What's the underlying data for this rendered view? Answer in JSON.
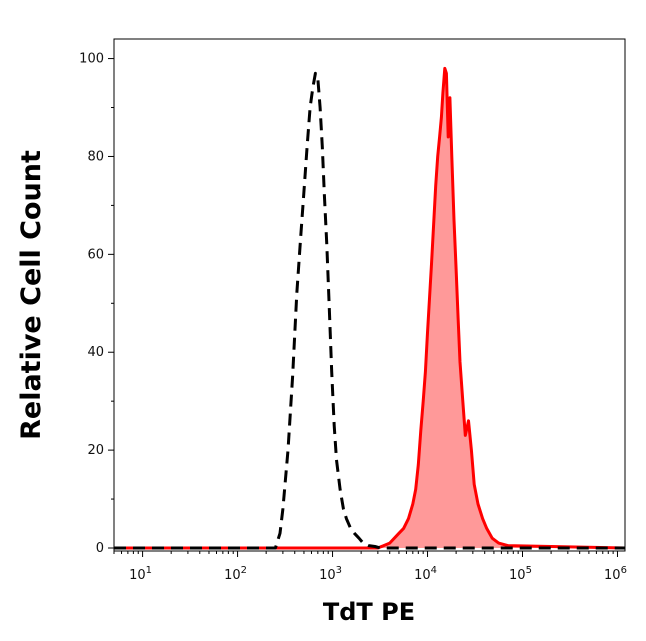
{
  "chart_data": {
    "type": "area",
    "title": "",
    "xlabel": "TdT PE",
    "ylabel": "Relative Cell Count",
    "x_scale": "log",
    "xlim": [
      5,
      1200000
    ],
    "ylim": [
      0,
      104
    ],
    "x_ticks": [
      {
        "value": 10,
        "base": "10",
        "exp": "1"
      },
      {
        "value": 100,
        "base": "10",
        "exp": "2"
      },
      {
        "value": 1000,
        "base": "10",
        "exp": "3"
      },
      {
        "value": 10000,
        "base": "10",
        "exp": "4"
      },
      {
        "value": 100000,
        "base": "10",
        "exp": "5"
      },
      {
        "value": 1000000,
        "base": "10",
        "exp": "6"
      }
    ],
    "y_ticks": [
      "0",
      "20",
      "40",
      "60",
      "80",
      "100"
    ],
    "grid": false,
    "legend": "none",
    "series": [
      {
        "style": "dashed-outline",
        "color": "#000000",
        "x": [
          5,
          250,
          280,
          300,
          340,
          380,
          420,
          460,
          500,
          540,
          580,
          620,
          660,
          700,
          740,
          780,
          820,
          870,
          920,
          980,
          1040,
          1100,
          1200,
          1300,
          1400,
          1550,
          1700,
          1900,
          2100,
          2400,
          2800,
          3200,
          1200000
        ],
        "y": [
          0,
          0,
          3,
          8,
          20,
          35,
          52,
          63,
          73,
          82,
          90,
          94,
          97,
          96,
          90,
          82,
          72,
          62,
          50,
          36,
          25,
          18,
          12,
          8,
          6,
          4,
          3,
          2,
          1,
          0.5,
          0.3,
          0,
          0
        ]
      },
      {
        "style": "filled",
        "color": "#ff0000",
        "fill": "#ff9999",
        "x": [
          5,
          3000,
          4000,
          5000,
          5600,
          6300,
          7000,
          7500,
          8000,
          8500,
          9000,
          9500,
          10000,
          10500,
          11000,
          11600,
          12200,
          12800,
          13400,
          14000,
          14500,
          15200,
          15800,
          16500,
          17200,
          18000,
          19000,
          20000,
          21000,
          22000,
          23500,
          25000,
          27000,
          29000,
          31000,
          34000,
          38000,
          42000,
          48000,
          56000,
          70000,
          1200000
        ],
        "y": [
          0,
          0,
          1,
          3,
          4,
          6,
          9,
          12,
          17,
          24,
          30,
          36,
          44,
          51,
          58,
          66,
          74,
          80,
          84,
          88,
          93,
          98,
          97,
          84,
          92,
          80,
          67,
          57,
          47,
          38,
          30,
          23,
          26,
          20,
          13,
          9,
          6,
          4,
          2,
          1,
          0.5,
          0
        ]
      }
    ]
  }
}
